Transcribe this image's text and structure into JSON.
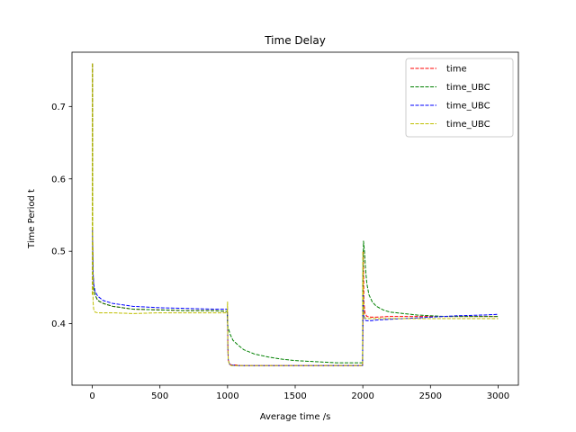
{
  "chart_data": {
    "type": "line",
    "title": "Time Delay",
    "xlabel": "Average time /s",
    "ylabel": "Time Period t",
    "xlim": [
      -150,
      3150
    ],
    "ylim": [
      0.315,
      0.775
    ],
    "xticks": [
      0,
      500,
      1000,
      1500,
      2000,
      2500,
      3000
    ],
    "yticks": [
      0.4,
      0.5,
      0.6,
      0.7
    ],
    "ytick_labels": [
      "0.4",
      "0.5",
      "0.6",
      "0.7"
    ],
    "grid": false,
    "legend_position": "top-right",
    "series": [
      {
        "name": "time",
        "color": "#ff0000",
        "style": "dashed",
        "x": [
          0,
          1,
          3,
          6,
          10,
          20,
          40,
          80,
          150,
          300,
          500,
          700,
          900,
          998,
          1000,
          1002,
          1005,
          1015,
          1030,
          1060,
          1100,
          1200,
          1300,
          1500,
          1700,
          1900,
          1998,
          2000,
          2003,
          2008,
          2015,
          2030,
          2060,
          2100,
          2200,
          2300,
          2500,
          2700,
          2900,
          3000
        ],
        "y": [
          0.44,
          0.76,
          0.52,
          0.47,
          0.45,
          0.44,
          0.432,
          0.428,
          0.424,
          0.42,
          0.419,
          0.418,
          0.418,
          0.417,
          0.405,
          0.37,
          0.35,
          0.344,
          0.343,
          0.343,
          0.342,
          0.342,
          0.342,
          0.342,
          0.342,
          0.342,
          0.342,
          0.38,
          0.5,
          0.43,
          0.415,
          0.41,
          0.409,
          0.409,
          0.41,
          0.41,
          0.41,
          0.41,
          0.41,
          0.41
        ]
      },
      {
        "name": "time_UBC",
        "color": "#008000",
        "style": "dashed",
        "x": [
          0,
          1,
          3,
          6,
          10,
          20,
          40,
          80,
          150,
          300,
          500,
          700,
          900,
          998,
          1000,
          1003,
          1008,
          1020,
          1040,
          1080,
          1120,
          1200,
          1300,
          1400,
          1500,
          1600,
          1700,
          1800,
          1900,
          1998,
          2000,
          2005,
          2012,
          2020,
          2030,
          2045,
          2070,
          2100,
          2150,
          2200,
          2300,
          2400,
          2500,
          2600,
          2800,
          3000
        ],
        "y": [
          0.44,
          0.76,
          0.52,
          0.47,
          0.45,
          0.44,
          0.432,
          0.428,
          0.424,
          0.42,
          0.419,
          0.418,
          0.418,
          0.417,
          0.4,
          0.395,
          0.392,
          0.385,
          0.377,
          0.37,
          0.364,
          0.358,
          0.354,
          0.351,
          0.349,
          0.348,
          0.347,
          0.346,
          0.346,
          0.346,
          0.46,
          0.514,
          0.5,
          0.475,
          0.455,
          0.44,
          0.43,
          0.424,
          0.419,
          0.416,
          0.414,
          0.412,
          0.411,
          0.41,
          0.41,
          0.41
        ]
      },
      {
        "name": "time_UBC",
        "color": "#0000ff",
        "style": "dashed",
        "x": [
          0,
          1,
          3,
          6,
          10,
          20,
          40,
          80,
          150,
          300,
          500,
          700,
          900,
          998,
          1000,
          1002,
          1005,
          1015,
          1030,
          1060,
          1100,
          1200,
          1300,
          1500,
          1700,
          1900,
          1998,
          2000,
          2003,
          2008,
          2015,
          2030,
          2060,
          2100,
          2200,
          2300,
          2500,
          2700,
          2900,
          3000
        ],
        "y": [
          0.44,
          0.53,
          0.5,
          0.47,
          0.455,
          0.445,
          0.438,
          0.432,
          0.428,
          0.424,
          0.422,
          0.421,
          0.42,
          0.42,
          0.405,
          0.37,
          0.35,
          0.344,
          0.343,
          0.342,
          0.342,
          0.342,
          0.342,
          0.342,
          0.342,
          0.342,
          0.342,
          0.38,
          0.44,
          0.412,
          0.405,
          0.404,
          0.404,
          0.405,
          0.406,
          0.407,
          0.409,
          0.411,
          0.412,
          0.413
        ]
      },
      {
        "name": "time_UBC",
        "color": "#bfbf00",
        "style": "dashed",
        "x": [
          0,
          1,
          3,
          6,
          10,
          20,
          40,
          80,
          150,
          300,
          500,
          700,
          900,
          998,
          1000,
          1002,
          1005,
          1015,
          1030,
          1060,
          1100,
          1200,
          1300,
          1500,
          1700,
          1900,
          1998,
          2000,
          2003,
          2008,
          2015,
          2030,
          2060,
          2100,
          2200,
          2300,
          2500,
          2700,
          2900,
          3000
        ],
        "y": [
          0.44,
          0.76,
          0.5,
          0.43,
          0.42,
          0.416,
          0.415,
          0.415,
          0.415,
          0.414,
          0.415,
          0.415,
          0.415,
          0.415,
          0.43,
          0.37,
          0.35,
          0.343,
          0.342,
          0.342,
          0.342,
          0.342,
          0.342,
          0.342,
          0.342,
          0.342,
          0.342,
          0.5,
          0.44,
          0.412,
          0.408,
          0.407,
          0.407,
          0.407,
          0.407,
          0.407,
          0.407,
          0.407,
          0.407,
          0.407
        ]
      }
    ]
  }
}
